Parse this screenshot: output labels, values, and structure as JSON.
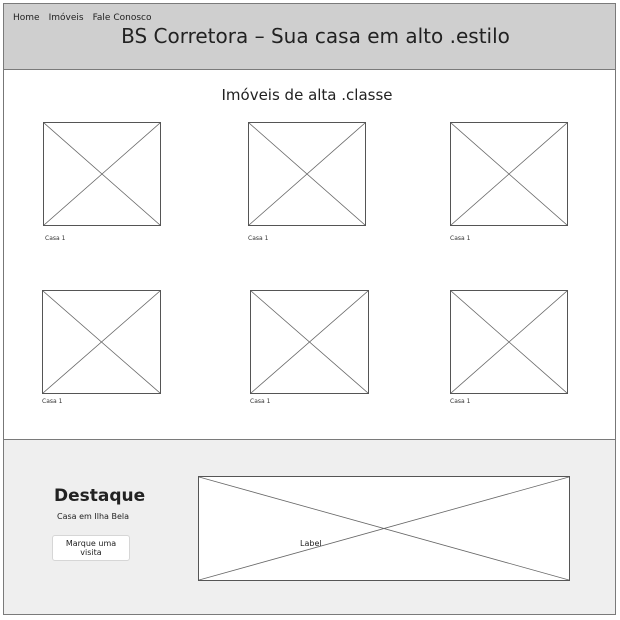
{
  "header": {
    "nav": [
      "Home",
      "Imóveis",
      "Fale Conosco"
    ],
    "title": "BS Corretora – Sua casa em alto .estilo"
  },
  "gallery": {
    "title": "Imóveis de alta .classe",
    "items": [
      {
        "caption": "Casa 1"
      },
      {
        "caption": "Casa 1"
      },
      {
        "caption": "Casa 1"
      },
      {
        "caption": "Casa 1"
      },
      {
        "caption": "Casa 1"
      },
      {
        "caption": "Casa 1"
      }
    ]
  },
  "highlight": {
    "title": "Destaque",
    "subtitle": "Casa em Ilha Bela",
    "button_label": "Marque uma visita",
    "banner_label": "Label"
  },
  "colors": {
    "header_bg": "#cfcfcf",
    "highlight_bg": "#efefef",
    "border": "#7a7a7a"
  }
}
